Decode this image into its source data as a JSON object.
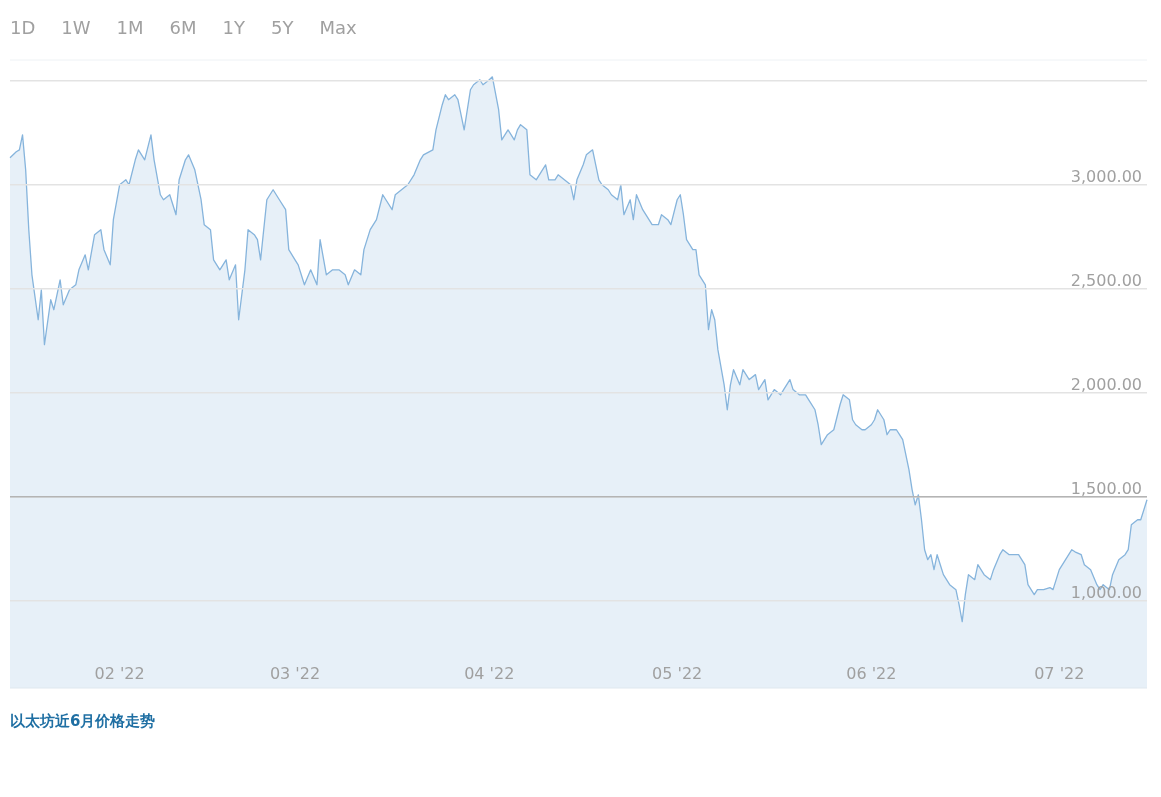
{
  "chart_data": {
    "type": "area",
    "title": "以太坊近6月价格走势",
    "annotations": [
      "1D",
      "1W",
      "1M",
      "6M",
      "1Y",
      "5Y",
      "Max"
    ],
    "x": [
      "2022-01-14T12:00",
      "2022-01-15T12:00",
      "2022-01-16",
      "2022-01-16T12:00",
      "2022-01-17",
      "2022-01-17T12:00",
      "2022-01-18",
      "2022-01-19",
      "2022-01-19T12:00",
      "2022-01-20",
      "2022-01-21",
      "2022-01-21T12:00",
      "2022-01-22T12:00",
      "2022-01-23",
      "2022-01-24",
      "2022-01-25",
      "2022-01-25T12:00",
      "2022-01-26T12:00",
      "2022-01-27",
      "2022-01-28",
      "2022-01-29",
      "2022-01-29T12:00",
      "2022-01-30T12:00",
      "2022-01-31",
      "2022-02-01",
      "2022-02-02",
      "2022-02-02T12:00",
      "2022-02-03T12:00",
      "2022-02-04",
      "2022-02-05",
      "2022-02-06",
      "2022-02-06T12:00",
      "2022-02-07T12:00",
      "2022-02-08",
      "2022-02-09",
      "2022-02-10",
      "2022-02-10T12:00",
      "2022-02-11T12:00",
      "2022-02-12",
      "2022-02-13",
      "2022-02-14",
      "2022-02-14T12:00",
      "2022-02-15T12:00",
      "2022-02-16",
      "2022-02-17",
      "2022-02-18",
      "2022-02-18T12:00",
      "2022-02-19T12:00",
      "2022-02-20",
      "2022-02-21",
      "2022-02-21T12:00",
      "2022-02-22T12:00",
      "2022-02-23",
      "2022-02-23T12:00",
      "2022-02-24T12:00",
      "2022-02-25T12:00",
      "2022-02-26T12:00",
      "2022-02-27T12:00",
      "2022-02-28",
      "2022-03-01",
      "2022-03-01T12:00",
      "2022-03-02T12:00",
      "2022-03-03T12:00",
      "2022-03-04T12:00",
      "2022-03-05",
      "2022-03-06",
      "2022-03-07",
      "2022-03-08",
      "2022-03-09",
      "2022-03-09T12:00",
      "2022-03-10T12:00",
      "2022-03-11T12:00",
      "2022-03-12",
      "2022-03-13",
      "2022-03-14",
      "2022-03-15",
      "2022-03-15T12:00",
      "2022-03-16T12:00",
      "2022-03-17",
      "2022-03-18",
      "2022-03-19",
      "2022-03-20",
      "2022-03-21",
      "2022-03-21T12:00",
      "2022-03-23",
      "2022-03-23T12:00",
      "2022-03-24T12:00",
      "2022-03-25",
      "2022-03-25T12:00",
      "2022-03-26T12:00",
      "2022-03-27",
      "2022-03-28",
      "2022-03-29",
      "2022-03-29T12:00",
      "2022-03-30T12:00",
      "2022-03-31",
      "2022-04-01",
      "2022-04-01T12:00",
      "2022-04-02T12:00",
      "2022-04-03",
      "2022-04-03T12:00",
      "2022-04-04",
      "2022-04-05",
      "2022-04-05T12:00",
      "2022-04-06",
      "2022-04-07",
      "2022-04-07T12:00",
      "2022-04-08T12:00",
      "2022-04-09",
      "2022-04-10",
      "2022-04-10T12:00",
      "2022-04-11T12:00",
      "2022-04-12",
      "2022-04-13",
      "2022-04-14",
      "2022-04-14T12:00",
      "2022-04-15",
      "2022-04-16",
      "2022-04-16T12:00",
      "2022-04-17T12:00",
      "2022-04-18",
      "2022-04-18T12:00",
      "2022-04-19",
      "2022-04-20",
      "2022-04-20T12:00",
      "2022-04-21T12:00",
      "2022-04-22",
      "2022-04-22T12:00",
      "2022-04-23T12:00",
      "2022-04-24",
      "2022-04-24T12:00",
      "2022-04-25T12:00",
      "2022-04-26",
      "2022-04-27",
      "2022-04-28",
      "2022-04-28T12:00",
      "2022-04-29T12:00",
      "2022-04-30",
      "2022-05-01",
      "2022-05-01T12:00",
      "2022-05-02",
      "2022-05-02T12:00",
      "2022-05-03T12:00",
      "2022-05-04",
      "2022-05-04T12:00",
      "2022-05-05T12:00",
      "2022-05-06",
      "2022-05-06T12:00",
      "2022-05-07",
      "2022-05-07T12:00",
      "2022-05-08T12:00",
      "2022-05-09",
      "2022-05-09T12:00",
      "2022-05-10",
      "2022-05-11",
      "2022-05-11T12:00",
      "2022-05-12T12:00",
      "2022-05-13T12:00",
      "2022-05-14",
      "2022-05-15",
      "2022-05-15T12:00",
      "2022-05-16T12:00",
      "2022-05-17T12:00",
      "2022-05-18",
      "2022-05-19",
      "2022-05-19T12:00",
      "2022-05-20T12:00",
      "2022-05-21T12:00",
      "2022-05-22",
      "2022-05-23",
      "2022-05-23T12:00",
      "2022-05-24",
      "2022-05-24T12:00",
      "2022-05-25",
      "2022-05-26",
      "2022-05-27",
      "2022-05-27T12:00",
      "2022-05-28T12:00",
      "2022-05-29",
      "2022-05-29T12:00",
      "2022-05-30T12:00",
      "2022-05-31",
      "2022-06-01",
      "2022-06-01T12:00",
      "2022-06-02",
      "2022-06-03",
      "2022-06-03T12:00",
      "2022-06-04",
      "2022-06-05",
      "2022-06-05T12:00",
      "2022-06-06",
      "2022-06-07",
      "2022-06-07T12:00",
      "2022-06-08",
      "2022-06-08T12:00",
      "2022-06-09",
      "2022-06-09T12:00",
      "2022-06-10",
      "2022-06-10T12:00",
      "2022-06-11",
      "2022-06-11T12:00",
      "2022-06-12",
      "2022-06-12T12:00",
      "2022-06-13",
      "2022-06-13T12:00",
      "2022-06-14T12:00",
      "2022-06-15",
      "2022-06-15T12:00",
      "2022-06-16",
      "2022-06-16T12:00",
      "2022-06-17T12:00",
      "2022-06-18",
      "2022-06-19",
      "2022-06-20",
      "2022-06-20T12:00",
      "2022-06-21T12:00",
      "2022-06-22",
      "2022-06-23",
      "2022-06-24",
      "2022-06-24T12:00",
      "2022-06-25T12:00",
      "2022-06-26",
      "2022-06-27",
      "2022-06-27T12:00",
      "2022-06-28T12:00",
      "2022-06-29T12:00",
      "2022-06-30",
      "2022-06-30T12:00",
      "2022-07-01",
      "2022-07-02",
      "2022-07-03",
      "2022-07-03T12:00",
      "2022-07-04T12:00",
      "2022-07-05",
      "2022-07-06",
      "2022-07-07",
      "2022-07-07T12:00",
      "2022-07-08",
      "2022-07-09",
      "2022-07-09T12:00",
      "2022-07-10T12:00",
      "2022-07-11T12:00",
      "2022-07-12",
      "2022-07-12T12:00",
      "2022-07-13T12:00",
      "2022-07-14",
      "2022-07-15"
    ],
    "series": [
      {
        "color": "#86b4dc",
        "values": [
          3130,
          3159,
          3168,
          3240,
          3072,
          2784,
          2567,
          2351,
          2495,
          2231,
          2447,
          2399,
          2543,
          2423,
          2495,
          2519,
          2591,
          2663,
          2591,
          2760,
          2784,
          2688,
          2615,
          2832,
          3000,
          3024,
          3000,
          3120,
          3168,
          3120,
          3240,
          3120,
          2952,
          2928,
          2952,
          2856,
          3024,
          3120,
          3144,
          3072,
          2928,
          2808,
          2784,
          2639,
          2591,
          2639,
          2543,
          2615,
          2351,
          2591,
          2784,
          2760,
          2736,
          2639,
          2928,
          2976,
          2928,
          2880,
          2688,
          2639,
          2615,
          2519,
          2591,
          2519,
          2736,
          2567,
          2591,
          2591,
          2567,
          2519,
          2591,
          2567,
          2688,
          2784,
          2832,
          2952,
          2928,
          2880,
          2952,
          2976,
          3000,
          3048,
          3120,
          3144,
          3168,
          3264,
          3385,
          3433,
          3409,
          3433,
          3409,
          3264,
          3457,
          3481,
          3505,
          3481,
          3505,
          3519,
          3361,
          3216,
          3240,
          3264,
          3216,
          3264,
          3289,
          3264,
          3048,
          3024,
          3048,
          3096,
          3024,
          3024,
          3048,
          3024,
          3000,
          2928,
          3024,
          3096,
          3144,
          3168,
          3096,
          3024,
          3000,
          2976,
          2952,
          2928,
          3000,
          2856,
          2928,
          2832,
          2952,
          2880,
          2856,
          2808,
          2808,
          2856,
          2832,
          2808,
          2928,
          2952,
          2856,
          2736,
          2688,
          2688,
          2567,
          2519,
          2303,
          2399,
          2351,
          2207,
          2038,
          1918,
          2038,
          2111,
          2038,
          2111,
          2063,
          2087,
          2015,
          2063,
          1966,
          2015,
          1990,
          2015,
          2063,
          2015,
          1990,
          1990,
          1966,
          1918,
          1846,
          1750,
          1774,
          1798,
          1822,
          1942,
          1990,
          1966,
          1870,
          1846,
          1822,
          1822,
          1846,
          1870,
          1918,
          1870,
          1798,
          1822,
          1822,
          1798,
          1774,
          1630,
          1534,
          1461,
          1509,
          1389,
          1245,
          1197,
          1221,
          1149,
          1221,
          1173,
          1125,
          1101,
          1077,
          1053,
          981,
          899,
          1029,
          1125,
          1101,
          1173,
          1125,
          1101,
          1149,
          1221,
          1245,
          1221,
          1221,
          1221,
          1173,
          1077,
          1029,
          1053,
          1053,
          1063,
          1053,
          1101,
          1149,
          1197,
          1245,
          1235,
          1221,
          1173,
          1149,
          1077,
          1053,
          1077,
          1053,
          1125,
          1197,
          1221,
          1245,
          1365,
          1389,
          1389,
          1485
        ]
      }
    ],
    "xlim": [
      "2022-01-14T12:00",
      "2022-07-15"
    ],
    "ylim": [
      580,
      3600
    ],
    "yticks": [
      {
        "value": 1000,
        "label": "1,000.00"
      },
      {
        "value": 1500,
        "label": "1,500.00"
      },
      {
        "value": 2000,
        "label": "2,000.00"
      },
      {
        "value": 2500,
        "label": "2,500.00"
      },
      {
        "value": 3000,
        "label": "3,000.00"
      },
      {
        "value": 3500,
        "label": null
      }
    ],
    "xticks": [
      {
        "value": "2022-02-01",
        "label": "02 '22"
      },
      {
        "value": "2022-03-01",
        "label": "03 '22"
      },
      {
        "value": "2022-04-01",
        "label": "04 '22"
      },
      {
        "value": "2022-05-01",
        "label": "05 '22"
      },
      {
        "value": "2022-06-01",
        "label": "06 '22"
      },
      {
        "value": "2022-07-01",
        "label": "07 '22"
      }
    ],
    "grid": "y",
    "ref_lines": [
      {
        "axis": "y",
        "value": 1500,
        "color": "#b4b4b4"
      }
    ]
  }
}
